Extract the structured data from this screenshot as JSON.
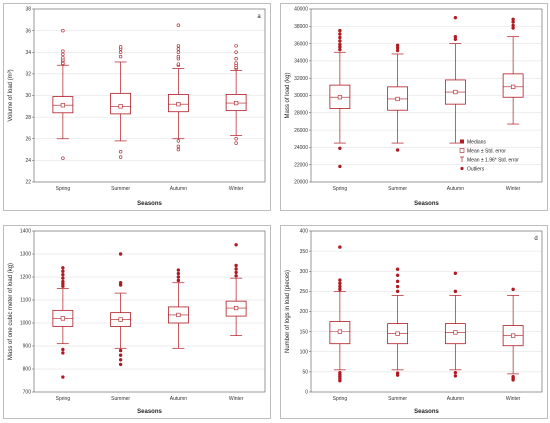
{
  "color": "#b01a22",
  "chart_data": [
    {
      "type": "box",
      "tag": "a",
      "xlabel": "Seasons",
      "ylabel": "Volume of load (m³)",
      "categories": [
        "Spring",
        "Summer",
        "Autumn",
        "Winter"
      ],
      "ylim": [
        22,
        38
      ],
      "yticks": [
        "22",
        "24",
        "26",
        "28",
        "30",
        "32",
        "34",
        "36",
        "38"
      ],
      "boxes": [
        {
          "whisker_low": 26.0,
          "q1": 28.4,
          "median": 29.1,
          "q3": 29.9,
          "whisker_high": 32.8,
          "mean": 29.1,
          "outliers": [
            24.2,
            32.9,
            33.0,
            33.2,
            33.3,
            33.5,
            33.8,
            34.1,
            36.0
          ]
        },
        {
          "whisker_low": 25.8,
          "q1": 28.3,
          "median": 29.0,
          "q3": 30.2,
          "whisker_high": 33.1,
          "mean": 29.0,
          "outliers": [
            24.3,
            24.8,
            33.6,
            34.0,
            34.3,
            34.5
          ]
        },
        {
          "whisker_low": 26.0,
          "q1": 28.5,
          "median": 29.2,
          "q3": 30.1,
          "whisker_high": 32.5,
          "mean": 29.2,
          "outliers": [
            25.0,
            25.3,
            25.8,
            32.8,
            32.9,
            33.4,
            33.6,
            34.0,
            34.3,
            34.6,
            36.5
          ]
        },
        {
          "whisker_low": 26.3,
          "q1": 28.6,
          "median": 29.3,
          "q3": 30.1,
          "whisker_high": 32.3,
          "mean": 29.3,
          "outliers": [
            25.6,
            26.0,
            32.5,
            32.6,
            32.8,
            33.0,
            33.4,
            34.0,
            34.6
          ]
        }
      ]
    },
    {
      "type": "box",
      "tag": "",
      "xlabel": "Seasons",
      "ylabel": "Mass of load (kg)",
      "categories": [
        "Spring",
        "Summer",
        "Autumn",
        "Winter"
      ],
      "ylim": [
        20000,
        40000
      ],
      "yticks": [
        "20000",
        "22000",
        "24000",
        "26000",
        "28000",
        "30000",
        "32000",
        "34000",
        "36000",
        "38000",
        "40000"
      ],
      "boxes": [
        {
          "whisker_low": 24500,
          "q1": 28500,
          "median": 29800,
          "q3": 31200,
          "whisker_high": 35000,
          "mean": 29800,
          "outliers": [
            21800,
            23900,
            35300,
            35600,
            35900,
            36300,
            36700,
            37100,
            37500
          ]
        },
        {
          "whisker_low": 24500,
          "q1": 28300,
          "median": 29600,
          "q3": 31000,
          "whisker_high": 34800,
          "mean": 29600,
          "outliers": [
            23700,
            35200,
            35500,
            35800
          ]
        },
        {
          "whisker_low": 24500,
          "q1": 29000,
          "median": 30400,
          "q3": 31800,
          "whisker_high": 36000,
          "mean": 30400,
          "outliers": [
            36500,
            36800,
            39000
          ]
        },
        {
          "whisker_low": 26700,
          "q1": 29800,
          "median": 31000,
          "q3": 32500,
          "whisker_high": 36800,
          "mean": 31000,
          "outliers": [
            37800,
            38100,
            38500,
            38800
          ]
        }
      ],
      "legend": [
        {
          "symbol": "median",
          "label": "Medians"
        },
        {
          "symbol": "box",
          "label": "Mean ± Std. error"
        },
        {
          "symbol": "whisker",
          "label": "Mean ± 1.96* Std. error"
        },
        {
          "symbol": "outlier",
          "label": "Outliers"
        }
      ]
    },
    {
      "type": "box",
      "tag": "",
      "xlabel": "Seasons",
      "ylabel": "Mass of one cubic meter of load (kg)",
      "categories": [
        "Spring",
        "Summer",
        "Autumn",
        "Winter"
      ],
      "ylim": [
        700,
        1400
      ],
      "yticks": [
        "700",
        "800",
        "900",
        "1000",
        "1100",
        "1200",
        "1300",
        "1400"
      ],
      "boxes": [
        {
          "whisker_low": 910,
          "q1": 985,
          "median": 1020,
          "q3": 1055,
          "whisker_high": 1150,
          "mean": 1020,
          "outliers": [
            765,
            870,
            885,
            1160,
            1170,
            1180,
            1195,
            1210,
            1225,
            1240
          ]
        },
        {
          "whisker_low": 890,
          "q1": 985,
          "median": 1015,
          "q3": 1045,
          "whisker_high": 1130,
          "mean": 1015,
          "outliers": [
            820,
            840,
            860,
            880,
            1165,
            1175,
            1300
          ]
        },
        {
          "whisker_low": 890,
          "q1": 1000,
          "median": 1035,
          "q3": 1070,
          "whisker_high": 1175,
          "mean": 1035,
          "outliers": [
            1185,
            1200,
            1215,
            1230
          ]
        },
        {
          "whisker_low": 945,
          "q1": 1030,
          "median": 1065,
          "q3": 1095,
          "whisker_high": 1195,
          "mean": 1065,
          "outliers": [
            1205,
            1220,
            1235,
            1250,
            1340
          ]
        }
      ]
    },
    {
      "type": "box",
      "tag": "d",
      "xlabel": "Seasons",
      "ylabel": "Number of logs in load (pieces)",
      "categories": [
        "Spring",
        "Summer",
        "Autumn",
        "Winter"
      ],
      "ylim": [
        0,
        400
      ],
      "yticks": [
        "0",
        "50",
        "100",
        "150",
        "200",
        "250",
        "300",
        "350",
        "400"
      ],
      "boxes": [
        {
          "whisker_low": 55,
          "q1": 120,
          "median": 150,
          "q3": 175,
          "whisker_high": 250,
          "mean": 150,
          "outliers": [
            28,
            33,
            38,
            43,
            48,
            255,
            262,
            270,
            278,
            360
          ]
        },
        {
          "whisker_low": 55,
          "q1": 120,
          "median": 145,
          "q3": 170,
          "whisker_high": 240,
          "mean": 145,
          "outliers": [
            42,
            47,
            250,
            262,
            275,
            290,
            305
          ]
        },
        {
          "whisker_low": 55,
          "q1": 120,
          "median": 148,
          "q3": 170,
          "whisker_high": 240,
          "mean": 148,
          "outliers": [
            40,
            48,
            250,
            295
          ]
        },
        {
          "whisker_low": 45,
          "q1": 115,
          "median": 140,
          "q3": 165,
          "whisker_high": 240,
          "mean": 140,
          "outliers": [
            30,
            34,
            38,
            255
          ]
        }
      ]
    }
  ]
}
